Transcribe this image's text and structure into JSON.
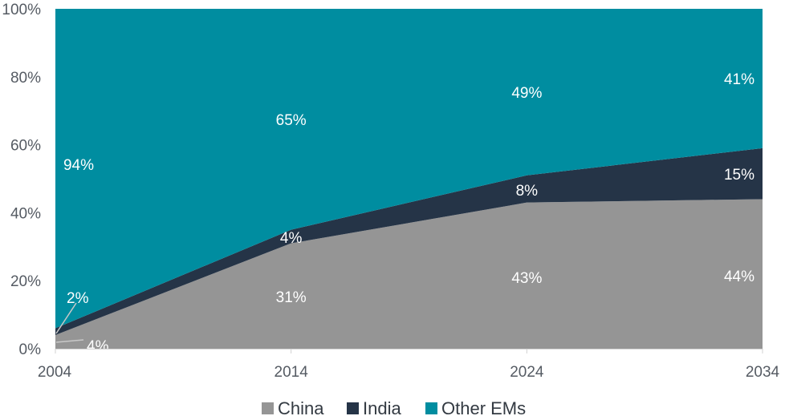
{
  "chart_data": {
    "type": "area",
    "stacked": true,
    "x": [
      "2004",
      "2014",
      "2024",
      "2034"
    ],
    "ylim": [
      0,
      100
    ],
    "yticks": [
      "0%",
      "20%",
      "40%",
      "60%",
      "80%",
      "100%"
    ],
    "grid": false,
    "legend_position": "bottom",
    "series": [
      {
        "name": "China",
        "values": [
          4,
          31,
          43,
          44
        ],
        "labels": [
          "4%",
          "31%",
          "43%",
          "44%"
        ],
        "color": "#959595"
      },
      {
        "name": "India",
        "values": [
          2,
          4,
          8,
          15
        ],
        "labels": [
          "2%",
          "4%",
          "8%",
          "15%"
        ],
        "color": "#253447"
      },
      {
        "name": "Other EMs",
        "values": [
          94,
          65,
          49,
          41
        ],
        "labels": [
          "94%",
          "65%",
          "49%",
          "41%"
        ],
        "color": "#008da0"
      }
    ]
  }
}
